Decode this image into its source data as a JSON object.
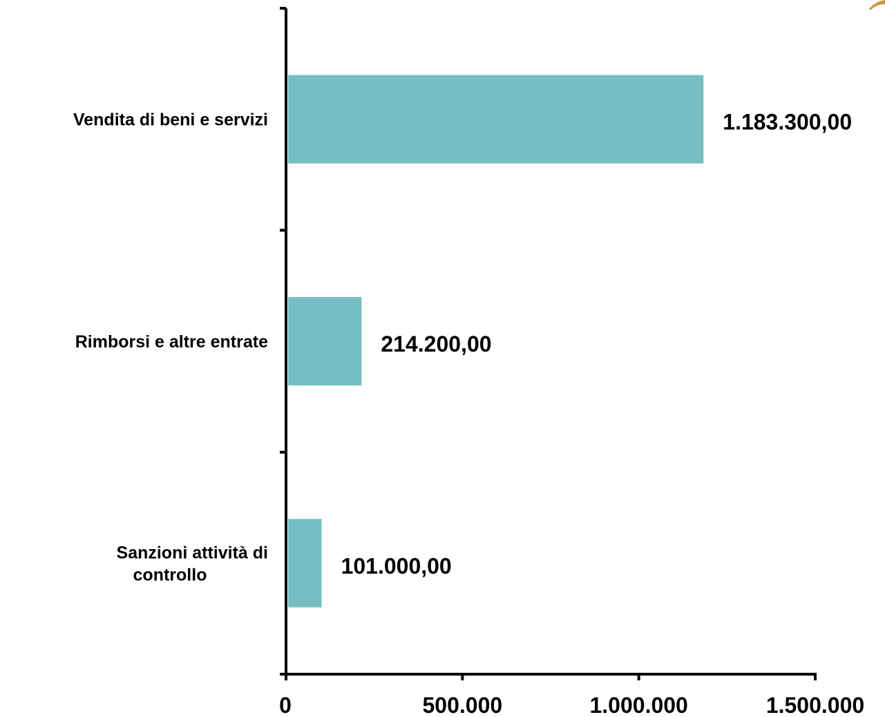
{
  "chart_data": {
    "type": "bar",
    "orientation": "horizontal",
    "categories": [
      [
        "Vendita di beni e  servizi"
      ],
      [
        "Rimborsi e altre entrate"
      ],
      [
        "Sanzioni attività di",
        "controllo"
      ]
    ],
    "values": [
      1183300,
      214200,
      101000
    ],
    "value_labels": [
      "1.183.300,00",
      "214.200,00",
      "101.000,00"
    ],
    "x_ticks": [
      0,
      500000,
      1000000,
      1500000
    ],
    "x_tick_labels": [
      "0",
      "500.000",
      "1.000.000",
      "1.500.000"
    ],
    "xlim": [
      0,
      1500000
    ],
    "bar_color": "#75BFC4",
    "axis_color": "#000000",
    "title": "",
    "xlabel": "",
    "ylabel": "",
    "grid": false,
    "legend": "none"
  }
}
